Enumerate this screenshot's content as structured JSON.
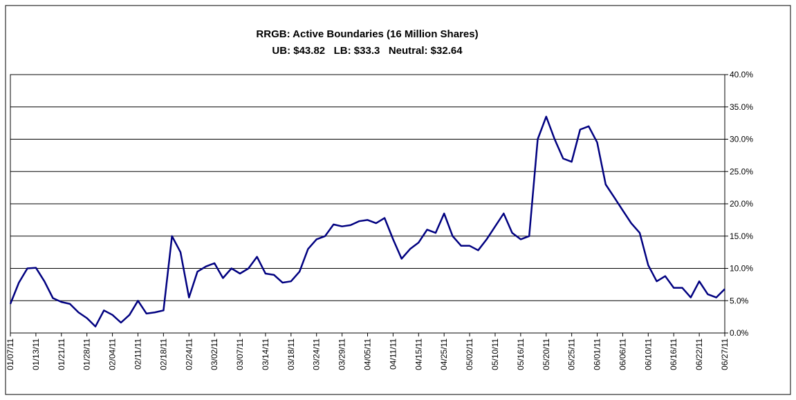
{
  "chart_data": {
    "type": "line",
    "title": "RRGB: Active Boundaries (16 Million Shares)",
    "subtitle": "UB: $43.82   LB: $33.3   Neutral: $32.64",
    "categories": [
      "01/07/11",
      null,
      null,
      "01/13/11",
      null,
      null,
      "01/21/11",
      null,
      null,
      "01/28/11",
      null,
      null,
      "02/04/11",
      null,
      null,
      "02/11/11",
      null,
      null,
      "02/18/11",
      null,
      null,
      "02/24/11",
      null,
      null,
      "03/02/11",
      null,
      null,
      "03/07/11",
      null,
      null,
      "03/14/11",
      null,
      null,
      "03/18/11",
      null,
      null,
      "03/24/11",
      null,
      null,
      "03/29/11",
      null,
      null,
      "04/05/11",
      null,
      null,
      "04/11/11",
      null,
      null,
      "04/15/11",
      null,
      null,
      "04/25/11",
      null,
      null,
      "05/02/11",
      null,
      null,
      "05/10/11",
      null,
      null,
      "05/16/11",
      null,
      null,
      "05/20/11",
      null,
      null,
      "05/25/11",
      null,
      null,
      "06/01/11",
      null,
      null,
      "06/06/11",
      null,
      null,
      "06/10/11",
      null,
      null,
      "06/16/11",
      null,
      null,
      "06/22/11",
      null,
      null,
      "06/27/11"
    ],
    "series": [
      {
        "name": "Active Boundaries",
        "color": "#000080",
        "values": [
          4.5,
          7.8,
          10,
          10.1,
          8,
          5.4,
          4.8,
          4.5,
          3.2,
          2.3,
          1,
          3.5,
          2.8,
          1.6,
          2.8,
          5,
          3,
          3.2,
          3.5,
          15,
          12.5,
          5.5,
          9.5,
          10.3,
          10.8,
          8.5,
          10,
          9.2,
          10,
          11.8,
          9.2,
          9,
          7.8,
          8,
          9.5,
          13,
          14.5,
          15,
          16.8,
          16.5,
          16.7,
          17.3,
          17.5,
          17,
          17.8,
          14.5,
          11.5,
          13,
          14,
          16,
          15.5,
          18.5,
          15,
          13.5,
          13.5,
          12.8,
          14.5,
          16.5,
          18.5,
          15.5,
          14.5,
          15,
          30,
          33.5,
          30,
          27,
          26.5,
          31.5,
          32,
          29.5,
          23,
          21,
          19,
          17,
          15.5,
          10.5,
          8,
          8.8,
          7,
          7,
          5.5,
          8,
          6,
          5.5,
          6.8
        ]
      }
    ],
    "ylim": [
      0,
      40
    ],
    "yticks": [
      {
        "value": 0,
        "label": "0.0%"
      },
      {
        "value": 5,
        "label": "5.0%"
      },
      {
        "value": 10,
        "label": "10.0%"
      },
      {
        "value": 15,
        "label": "15.0%"
      },
      {
        "value": 20,
        "label": "20.0%"
      },
      {
        "value": 25,
        "label": "25.0%"
      },
      {
        "value": 30,
        "label": "30.0%"
      },
      {
        "value": 35,
        "label": "35.0%"
      },
      {
        "value": 40,
        "label": "40.0%"
      }
    ],
    "grid": true
  }
}
